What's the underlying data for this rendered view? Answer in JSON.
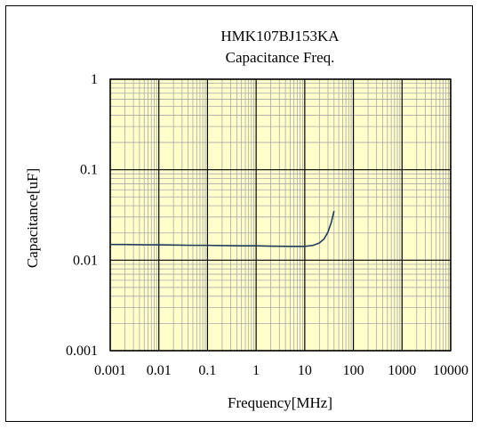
{
  "chart_data": {
    "type": "line",
    "title": "HMK107BJ153KA",
    "subtitle": "Capacitance Freq.",
    "xlabel": "Frequency[MHz]",
    "ylabel": "Capacitance[uF]",
    "x_scale": "log",
    "y_scale": "log",
    "xlim": [
      0.001,
      10000
    ],
    "ylim": [
      0.001,
      1
    ],
    "x_ticks": [
      {
        "value": 0.001,
        "label": "0.001"
      },
      {
        "value": 0.01,
        "label": "0.01"
      },
      {
        "value": 0.1,
        "label": "0.1"
      },
      {
        "value": 1,
        "label": "1"
      },
      {
        "value": 10,
        "label": "10"
      },
      {
        "value": 100,
        "label": "100"
      },
      {
        "value": 1000,
        "label": "1000"
      },
      {
        "value": 10000,
        "label": "10000"
      }
    ],
    "y_ticks": [
      {
        "value": 0.001,
        "label": "0.001"
      },
      {
        "value": 0.01,
        "label": "0.01"
      },
      {
        "value": 0.1,
        "label": "0.1"
      },
      {
        "value": 1,
        "label": "1"
      }
    ],
    "grid": true,
    "legend": "none",
    "series": [
      {
        "color": "#1f3b5a",
        "x": [
          0.001,
          0.002,
          0.005,
          0.01,
          0.02,
          0.05,
          0.1,
          0.2,
          0.5,
          1,
          2,
          5,
          10,
          15,
          20,
          25,
          30,
          35,
          40
        ],
        "y": [
          0.0149,
          0.0149,
          0.0148,
          0.0148,
          0.0147,
          0.0146,
          0.0146,
          0.0145,
          0.0144,
          0.0144,
          0.0143,
          0.0142,
          0.0142,
          0.0146,
          0.0155,
          0.0172,
          0.0205,
          0.026,
          0.035
        ]
      }
    ],
    "colors": {
      "plot_background": "#ffffcc",
      "major_grid": "#000000",
      "minor_grid": "#a8a8a8"
    }
  }
}
